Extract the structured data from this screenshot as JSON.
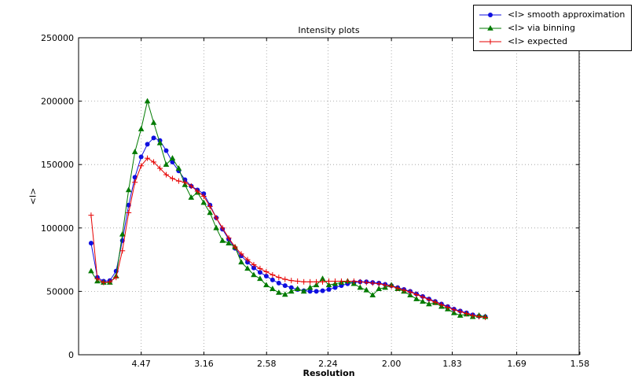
{
  "chart_data": {
    "type": "line",
    "title": "Intensity plots",
    "xlabel": "Resolution",
    "ylabel": "<I>",
    "grid": "dotted",
    "legend_position": "top-right",
    "x_axis": {
      "unit": "1/d^2",
      "range": [
        0,
        0.4
      ],
      "ticks": [
        {
          "label": "4.47",
          "value": 0.050048
        },
        {
          "label": "3.16",
          "value": 0.100144
        },
        {
          "label": "2.58",
          "value": 0.150231
        },
        {
          "label": "2.24",
          "value": 0.199298
        },
        {
          "label": "2.00",
          "value": 0.25
        },
        {
          "label": "1.83",
          "value": 0.298606
        },
        {
          "label": "1.69",
          "value": 0.350128
        },
        {
          "label": "1.58",
          "value": 0.400577
        }
      ]
    },
    "y_axis": {
      "range": [
        0,
        250000
      ],
      "ticks": [
        0,
        50000,
        100000,
        150000,
        200000,
        250000
      ]
    },
    "x": [
      0.01,
      0.015,
      0.02,
      0.025,
      0.03,
      0.035,
      0.04,
      0.045,
      0.05,
      0.055,
      0.06,
      0.065,
      0.07,
      0.075,
      0.08,
      0.085,
      0.09,
      0.095,
      0.1,
      0.105,
      0.11,
      0.115,
      0.12,
      0.125,
      0.13,
      0.135,
      0.14,
      0.145,
      0.15,
      0.155,
      0.16,
      0.165,
      0.17,
      0.175,
      0.18,
      0.185,
      0.19,
      0.195,
      0.2,
      0.205,
      0.21,
      0.215,
      0.22,
      0.225,
      0.23,
      0.235,
      0.24,
      0.245,
      0.25,
      0.255,
      0.26,
      0.265,
      0.27,
      0.275,
      0.28,
      0.285,
      0.29,
      0.295,
      0.3,
      0.305,
      0.31,
      0.315,
      0.32,
      0.325
    ],
    "series": [
      {
        "name": "<I> smooth approximation",
        "color": "#0f0fe0",
        "marker": "circle",
        "values": [
          88000,
          61000,
          58000,
          58500,
          66000,
          90000,
          118000,
          140000,
          156000,
          166000,
          171000,
          169000,
          161000,
          152000,
          145000,
          138000,
          133000,
          130000,
          127000,
          118000,
          108000,
          99000,
          91000,
          84000,
          78000,
          73000,
          68500,
          65000,
          62000,
          59000,
          56500,
          54500,
          53000,
          51500,
          50500,
          50000,
          50000,
          50500,
          51500,
          53000,
          54500,
          56000,
          57000,
          57500,
          57500,
          57000,
          56500,
          55500,
          54500,
          53000,
          51500,
          50000,
          48000,
          46000,
          44000,
          42000,
          40000,
          38000,
          36000,
          34500,
          33000,
          31500,
          30500,
          30000
        ]
      },
      {
        "name": "<I> via binning",
        "color": "#007a00",
        "marker": "triangle",
        "values": [
          66000,
          58000,
          57000,
          57000,
          62000,
          95000,
          130000,
          160000,
          178000,
          200000,
          183000,
          167000,
          150000,
          155000,
          147000,
          134000,
          124000,
          128000,
          120000,
          112000,
          100000,
          90000,
          88000,
          85000,
          73000,
          68000,
          63000,
          60000,
          55000,
          52000,
          49000,
          47500,
          50000,
          52000,
          50000,
          53000,
          55000,
          60000,
          55000,
          56000,
          57000,
          58000,
          56000,
          53000,
          51000,
          47000,
          52000,
          53000,
          55000,
          52000,
          50000,
          47000,
          44000,
          42000,
          40000,
          41000,
          38000,
          36000,
          33000,
          31000,
          32000,
          30000,
          31000,
          30000
        ]
      },
      {
        "name": "<I> expected",
        "color": "#e60000",
        "marker": "plus",
        "values": [
          110000,
          60000,
          57000,
          57500,
          61000,
          82000,
          112000,
          136000,
          149000,
          155000,
          152000,
          147000,
          142000,
          139000,
          137000,
          136000,
          133000,
          129000,
          125000,
          117000,
          108000,
          100000,
          92000,
          85000,
          79500,
          75000,
          71000,
          68000,
          65500,
          63000,
          61000,
          59500,
          58500,
          58000,
          57500,
          57500,
          57500,
          57500,
          58000,
          58000,
          58000,
          58000,
          58000,
          57500,
          57000,
          56500,
          56000,
          55000,
          54000,
          52500,
          51000,
          49500,
          47500,
          45500,
          43500,
          41500,
          39500,
          37500,
          35500,
          34000,
          32500,
          31000,
          30000,
          29500
        ]
      }
    ]
  }
}
